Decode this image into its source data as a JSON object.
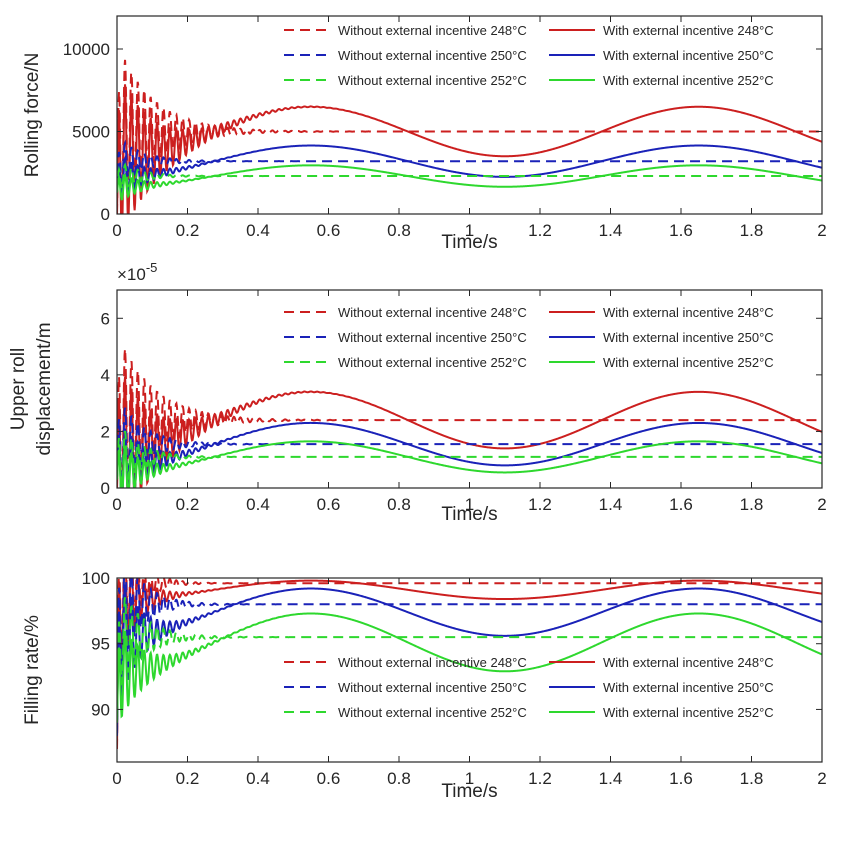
{
  "chart_data": [
    {
      "type": "line",
      "title": "",
      "xlabel": "Time/s",
      "ylabel": "Rolling force/N",
      "xlim": [
        0,
        2
      ],
      "ylim": [
        0,
        12000
      ],
      "xticks": [
        "0",
        "0.2",
        "0.4",
        "0.6",
        "0.8",
        "1",
        "1.2",
        "1.4",
        "1.6",
        "1.8",
        "2"
      ],
      "yticks": [
        "0",
        "5000",
        "10000"
      ],
      "ytick_values": [
        0,
        5000,
        10000
      ],
      "legend_position": "top-right",
      "series": [
        {
          "name": "Without external incentive 248°C",
          "style": "dashed",
          "color": "#cc1f1f",
          "steady": 5000,
          "start": 0,
          "peak": 11000,
          "tau": 0.1
        },
        {
          "name": "With external incentive 248°C",
          "style": "solid",
          "color": "#cc1f1f",
          "steady": 5000,
          "amp": 1500,
          "start": 0,
          "peak": 11000,
          "tau": 0.1
        },
        {
          "name": "Without external incentive 250°C",
          "style": "dashed",
          "color": "#1a22b8",
          "steady": 3200,
          "start": 1500,
          "peak": 4500,
          "tau": 0.07
        },
        {
          "name": "With external incentive 250°C",
          "style": "solid",
          "color": "#1a22b8",
          "steady": 3200,
          "amp": 950,
          "start": 1500,
          "peak": 4500,
          "tau": 0.07
        },
        {
          "name": "Without external incentive 252°C",
          "style": "dashed",
          "color": "#2ed82e",
          "steady": 2300,
          "start": 1300,
          "peak": 3300,
          "tau": 0.06
        },
        {
          "name": "With external incentive 252°C",
          "style": "solid",
          "color": "#2ed82e",
          "steady": 2300,
          "amp": 650,
          "start": 1300,
          "peak": 3300,
          "tau": 0.06
        }
      ]
    },
    {
      "type": "line",
      "title": "",
      "xlabel": "Time/s",
      "ylabel_line1": "Upper roll",
      "ylabel_line2": "displacement/m",
      "exponent": "×10",
      "exponent_power": "-5",
      "xlim": [
        0,
        2
      ],
      "ylim": [
        0,
        7
      ],
      "xticks": [
        "0",
        "0.2",
        "0.4",
        "0.6",
        "0.8",
        "1",
        "1.2",
        "1.4",
        "1.6",
        "1.8",
        "2"
      ],
      "yticks": [
        "0",
        "2",
        "4",
        "6"
      ],
      "ytick_values": [
        0,
        2,
        4,
        6
      ],
      "legend_position": "top-right",
      "series": [
        {
          "name": "Without external incentive 248°C",
          "style": "dashed",
          "color": "#cc1f1f",
          "steady": 2.4,
          "start": 0,
          "peak": 6.4,
          "tau": 0.1
        },
        {
          "name": "With external incentive 248°C",
          "style": "solid",
          "color": "#cc1f1f",
          "steady": 2.4,
          "amp": 1.0,
          "start": 0,
          "peak": 6.4,
          "tau": 0.1
        },
        {
          "name": "Without external incentive 250°C",
          "style": "dashed",
          "color": "#1a22b8",
          "steady": 1.55,
          "start": 0.4,
          "peak": 4.0,
          "tau": 0.07
        },
        {
          "name": "With external incentive 250°C",
          "style": "solid",
          "color": "#1a22b8",
          "steady": 1.55,
          "amp": 0.75,
          "start": 0.4,
          "peak": 4.0,
          "tau": 0.07
        },
        {
          "name": "Without external incentive 252°C",
          "style": "dashed",
          "color": "#2ed82e",
          "steady": 1.1,
          "start": 0.3,
          "peak": 3.0,
          "tau": 0.06
        },
        {
          "name": "With external incentive 252°C",
          "style": "solid",
          "color": "#2ed82e",
          "steady": 1.1,
          "amp": 0.55,
          "start": 0.3,
          "peak": 3.0,
          "tau": 0.06
        }
      ]
    },
    {
      "type": "line",
      "title": "",
      "xlabel": "Time/s",
      "ylabel": "Filling rate/%",
      "xlim": [
        0,
        2
      ],
      "ylim": [
        86,
        100
      ],
      "xticks": [
        "0",
        "0.2",
        "0.4",
        "0.6",
        "0.8",
        "1",
        "1.2",
        "1.4",
        "1.6",
        "1.8",
        "2"
      ],
      "yticks": [
        "90",
        "95",
        "100"
      ],
      "ytick_values": [
        90,
        95,
        100
      ],
      "legend_position": "bottom-right",
      "series": [
        {
          "name": "Without external incentive 248°C",
          "style": "dashed",
          "color": "#cc1f1f",
          "steady": 99.6,
          "start": 87,
          "peak": 100,
          "tau": 0.05
        },
        {
          "name": "With external incentive 248°C",
          "style": "solid",
          "color": "#cc1f1f",
          "steady": 99.1,
          "amp": 0.7,
          "start": 87,
          "peak": 100,
          "tau": 0.05
        },
        {
          "name": "Without  external incentive 250°C",
          "style": "dashed",
          "color": "#1a22b8",
          "steady": 98.0,
          "start": 88,
          "peak": 99.5,
          "tau": 0.06
        },
        {
          "name": "With external incentive 250°C",
          "style": "solid",
          "color": "#1a22b8",
          "steady": 97.4,
          "amp": 1.8,
          "start": 88,
          "peak": 99.5,
          "tau": 0.06
        },
        {
          "name": "Without  external incentive 252°C",
          "style": "dashed",
          "color": "#2ed82e",
          "steady": 95.5,
          "start": 89,
          "peak": 97.5,
          "tau": 0.07
        },
        {
          "name": "With external incentive 252°C",
          "style": "solid",
          "color": "#2ed82e",
          "steady": 95.1,
          "amp": 2.2,
          "start": 89,
          "peak": 97.5,
          "tau": 0.07
        }
      ]
    }
  ]
}
